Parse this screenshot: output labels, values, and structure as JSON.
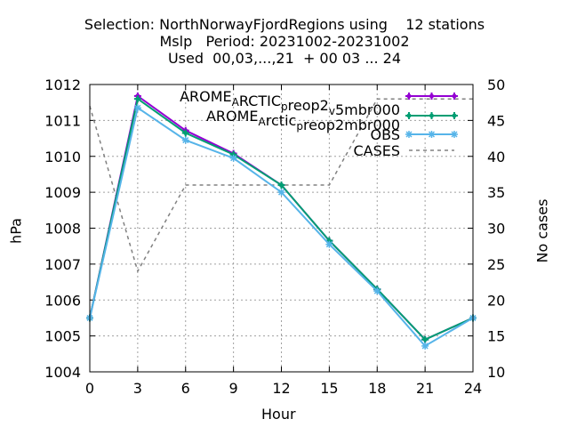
{
  "chart_data": {
    "type": "line",
    "title_lines": [
      "Selection: NorthNorwayFjordRegions using    12 stations",
      "Mslp   Period: 20231002-20231002",
      "Used  00,03,...,21  + 00 03 ... 24"
    ],
    "xlabel": "Hour",
    "ylabel": "hPa",
    "y2label": "No cases",
    "x": [
      0,
      3,
      6,
      9,
      12,
      15,
      18,
      21,
      24
    ],
    "xlim": [
      0,
      24
    ],
    "ylim": [
      1004,
      1012
    ],
    "y2lim": [
      10,
      50
    ],
    "x_ticks": [
      "0",
      "3",
      "6",
      "9",
      "12",
      "15",
      "18",
      "21",
      "24"
    ],
    "y_ticks": [
      "1004",
      "1005",
      "1006",
      "1007",
      "1008",
      "1009",
      "1010",
      "1011",
      "1012"
    ],
    "y2_ticks": [
      "10",
      "15",
      "20",
      "25",
      "30",
      "35",
      "40",
      "45",
      "50"
    ],
    "grid": true,
    "legend_position": "top-right",
    "series": [
      {
        "name": "AROME_ARCTIC_preop2_v5mbr000",
        "legend_parts": [
          [
            "AROME",
            "n"
          ],
          [
            "A",
            "sub"
          ],
          [
            "RCTIC",
            "n"
          ],
          [
            "p",
            "sub"
          ],
          [
            "reop2",
            "n"
          ],
          [
            "v",
            "sub"
          ],
          [
            "5mbr000",
            "n"
          ]
        ],
        "color": "#9400d3",
        "marker": "plus",
        "axis": "left",
        "values": [
          1005.5,
          1011.68,
          1010.72,
          1010.08,
          1009.2,
          1007.65,
          1006.3,
          1004.9,
          1005.5
        ]
      },
      {
        "name": "AROME_Arctic_preop2mbr000",
        "legend_parts": [
          [
            "AROME",
            "n"
          ],
          [
            "A",
            "sub"
          ],
          [
            "rctic",
            "n"
          ],
          [
            "p",
            "sub"
          ],
          [
            "reop2mbr000",
            "n"
          ]
        ],
        "color": "#009e73",
        "marker": "plus",
        "axis": "left",
        "values": [
          1005.5,
          1011.6,
          1010.65,
          1010.05,
          1009.2,
          1007.65,
          1006.3,
          1004.9,
          1005.5
        ]
      },
      {
        "name": "OBS",
        "legend_parts": [
          [
            "OBS",
            "n"
          ]
        ],
        "color": "#56b4e9",
        "marker": "star",
        "axis": "left",
        "values": [
          1005.5,
          1011.35,
          1010.45,
          1009.95,
          1009.0,
          1007.55,
          1006.25,
          1004.72,
          1005.5
        ]
      },
      {
        "name": "CASES",
        "legend_parts": [
          [
            "CASES",
            "n"
          ]
        ],
        "color": "#808080",
        "dashed": true,
        "axis": "right",
        "values": [
          47,
          24,
          36,
          36,
          36,
          36,
          48,
          48,
          48
        ]
      }
    ]
  }
}
